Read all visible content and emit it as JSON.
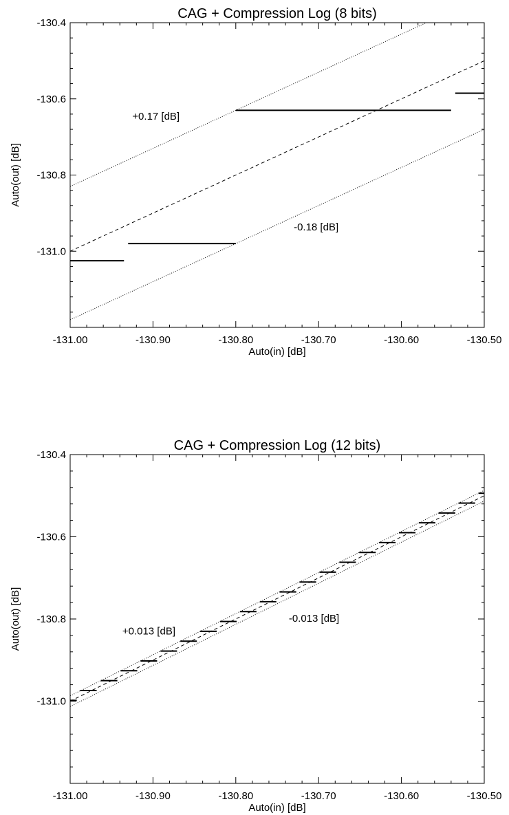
{
  "chart_data": [
    {
      "type": "line",
      "title": "CAG + Compression Log (8 bits)",
      "xlabel": "Auto(in) [dB]",
      "ylabel": "Auto(out) [dB]",
      "xlim": [
        -131.0,
        -130.5
      ],
      "ylim": [
        -131.2,
        -130.4
      ],
      "x_tick_values": [
        -131.0,
        -130.9,
        -130.8,
        -130.7,
        -130.6,
        -130.5
      ],
      "x_tick_labels": [
        "-131.00",
        "-130.90",
        "-130.80",
        "-130.70",
        "-130.60",
        "-130.50"
      ],
      "y_tick_values": [
        -130.4,
        -130.6,
        -130.8,
        -131.0
      ],
      "y_tick_labels": [
        "-130.4",
        "-130.6",
        "-130.8",
        "-131.0"
      ],
      "grid": false,
      "series": [
        {
          "style": "dashed",
          "x": [
            -131.0,
            -130.5
          ],
          "y": [
            -131.0,
            -130.5
          ]
        },
        {
          "style": "dotted",
          "x": [
            -131.0,
            -130.5
          ],
          "y": [
            -130.83,
            -130.33
          ]
        },
        {
          "style": "dotted",
          "x": [
            -131.0,
            -130.5
          ],
          "y": [
            -131.18,
            -130.68
          ]
        }
      ],
      "steps": [
        {
          "x0": -131.0,
          "x1": -130.935,
          "y": -131.025
        },
        {
          "x0": -130.93,
          "x1": -130.8,
          "y": -130.98
        },
        {
          "x0": -130.8,
          "x1": -130.54,
          "y": -130.63
        },
        {
          "x0": -130.535,
          "x1": -130.5,
          "y": -130.585
        }
      ],
      "annotations": [
        {
          "text": "+0.17 [dB]",
          "x": -130.925,
          "y": -130.655
        },
        {
          "text": "-0.18 [dB]",
          "x": -130.73,
          "y": -130.945
        }
      ]
    },
    {
      "type": "line",
      "title": "CAG + Compression Log (12 bits)",
      "xlabel": "Auto(in) [dB]",
      "ylabel": "Auto(out) [dB]",
      "xlim": [
        -131.0,
        -130.5
      ],
      "ylim": [
        -131.2,
        -130.4
      ],
      "x_tick_values": [
        -131.0,
        -130.9,
        -130.8,
        -130.7,
        -130.6,
        -130.5
      ],
      "x_tick_labels": [
        "-131.00",
        "-130.90",
        "-130.80",
        "-130.70",
        "-130.60",
        "-130.50"
      ],
      "y_tick_values": [
        -130.4,
        -130.6,
        -130.8,
        -131.0
      ],
      "y_tick_labels": [
        "-130.4",
        "-130.6",
        "-130.8",
        "-131.0"
      ],
      "grid": false,
      "series": [
        {
          "style": "dashed",
          "x": [
            -131.0,
            -130.5
          ],
          "y": [
            -131.0,
            -130.5
          ]
        },
        {
          "style": "dotted",
          "x": [
            -131.0,
            -130.5
          ],
          "y": [
            -130.987,
            -130.487
          ]
        },
        {
          "style": "dotted",
          "x": [
            -131.0,
            -130.5
          ],
          "y": [
            -131.013,
            -130.513
          ]
        }
      ],
      "steps": [
        {
          "x0": -131.0,
          "x1": -130.992,
          "y": -130.998
        },
        {
          "x0": -130.988,
          "x1": -130.968,
          "y": -130.974
        },
        {
          "x0": -130.963,
          "x1": -130.943,
          "y": -130.95
        },
        {
          "x0": -130.939,
          "x1": -130.919,
          "y": -130.926
        },
        {
          "x0": -130.915,
          "x1": -130.895,
          "y": -130.902
        },
        {
          "x0": -130.891,
          "x1": -130.871,
          "y": -130.878
        },
        {
          "x0": -130.867,
          "x1": -130.847,
          "y": -130.854
        },
        {
          "x0": -130.843,
          "x1": -130.823,
          "y": -130.83
        },
        {
          "x0": -130.819,
          "x1": -130.799,
          "y": -130.806
        },
        {
          "x0": -130.795,
          "x1": -130.775,
          "y": -130.782
        },
        {
          "x0": -130.771,
          "x1": -130.751,
          "y": -130.758
        },
        {
          "x0": -130.747,
          "x1": -130.727,
          "y": -130.734
        },
        {
          "x0": -130.723,
          "x1": -130.703,
          "y": -130.71
        },
        {
          "x0": -130.699,
          "x1": -130.679,
          "y": -130.686
        },
        {
          "x0": -130.675,
          "x1": -130.655,
          "y": -130.662
        },
        {
          "x0": -130.651,
          "x1": -130.631,
          "y": -130.638
        },
        {
          "x0": -130.627,
          "x1": -130.607,
          "y": -130.614
        },
        {
          "x0": -130.603,
          "x1": -130.583,
          "y": -130.59
        },
        {
          "x0": -130.579,
          "x1": -130.559,
          "y": -130.566
        },
        {
          "x0": -130.555,
          "x1": -130.535,
          "y": -130.542
        },
        {
          "x0": -130.531,
          "x1": -130.511,
          "y": -130.518
        },
        {
          "x0": -130.507,
          "x1": -130.5,
          "y": -130.494
        }
      ],
      "annotations": [
        {
          "text": "+0.013 [dB]",
          "x": -130.937,
          "y": -130.838
        },
        {
          "text": "-0.013 [dB]",
          "x": -130.736,
          "y": -130.807
        }
      ]
    }
  ]
}
